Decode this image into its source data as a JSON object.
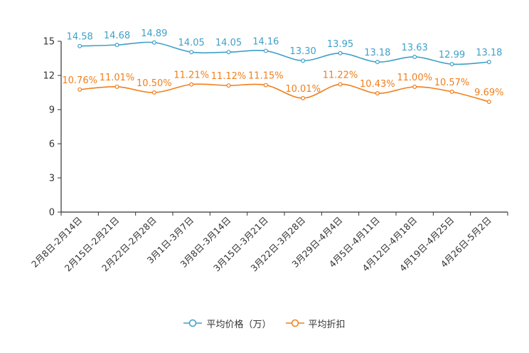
{
  "chart_data": {
    "type": "line",
    "categories": [
      "2月8日-2月14日",
      "2月15日-2月21日",
      "2月22日-2月28日",
      "3月1日-3月7日",
      "3月8日-3月14日",
      "3月15日-3月21日",
      "3月22日-3月28日",
      "3月29日-4月4日",
      "4月5日-4月11日",
      "4月12日-4月18日",
      "4月19日-4月25日",
      "4月26日-5月2日"
    ],
    "series": [
      {
        "name": "平均价格（万）",
        "color": "#3ea0c8",
        "values": [
          14.58,
          14.68,
          14.89,
          14.05,
          14.05,
          14.16,
          13.3,
          13.95,
          13.18,
          13.63,
          12.99,
          13.18
        ],
        "labels": [
          "14.58",
          "14.68",
          "14.89",
          "14.05",
          "14.05",
          "14.16",
          "13.30",
          "13.95",
          "13.18",
          "13.63",
          "12.99",
          "13.18"
        ]
      },
      {
        "name": "平均折扣",
        "color": "#f07f1b",
        "values": [
          10.76,
          11.01,
          10.5,
          11.21,
          11.12,
          11.15,
          10.01,
          11.22,
          10.43,
          11.0,
          10.57,
          9.69
        ],
        "labels": [
          "10.76%",
          "11.01%",
          "10.50%",
          "11.21%",
          "11.12%",
          "11.15%",
          "10.01%",
          "11.22%",
          "10.43%",
          "11.00%",
          "10.57%",
          "9.69%"
        ]
      }
    ],
    "yticks": [
      "0",
      "3",
      "6",
      "9",
      "12",
      "15"
    ],
    "ylim": [
      0,
      15
    ],
    "title": "",
    "xlabel": "",
    "ylabel": "",
    "legend_position": "bottom-center"
  }
}
